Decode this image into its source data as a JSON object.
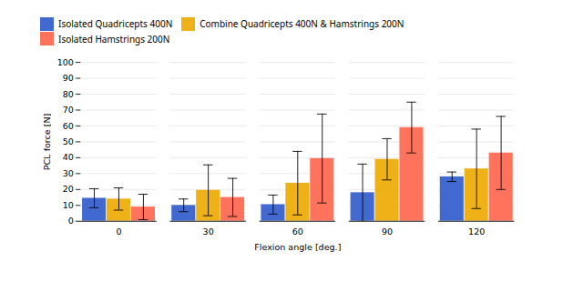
{
  "chart_data": {
    "type": "bar",
    "categories": [
      0,
      30,
      60,
      90,
      120
    ],
    "series": [
      {
        "name": "Isolated Quadricepts 400N",
        "values": [
          14.5,
          10,
          10.5,
          18,
          28
        ],
        "errors": [
          6,
          4,
          6,
          18,
          3
        ]
      },
      {
        "name": "Combine Quadricepts 400N & Hamstrings 200N",
        "values": [
          14,
          19.5,
          24,
          39,
          33
        ],
        "errors": [
          7,
          16,
          20,
          13,
          25
        ]
      },
      {
        "name": "Isolated Hamstrings 200N",
        "values": [
          9,
          15,
          39.5,
          59,
          43
        ],
        "errors": [
          8,
          12,
          28,
          16,
          23
        ]
      }
    ],
    "xlabel": "Flexion angle [deg.]",
    "ylabel": "PCL force [N]",
    "ylim": [
      0,
      100
    ],
    "yticks": [
      0,
      10,
      20,
      30,
      40,
      50,
      60,
      70,
      80,
      90,
      100
    ],
    "grid": true,
    "legend": "upper left"
  }
}
